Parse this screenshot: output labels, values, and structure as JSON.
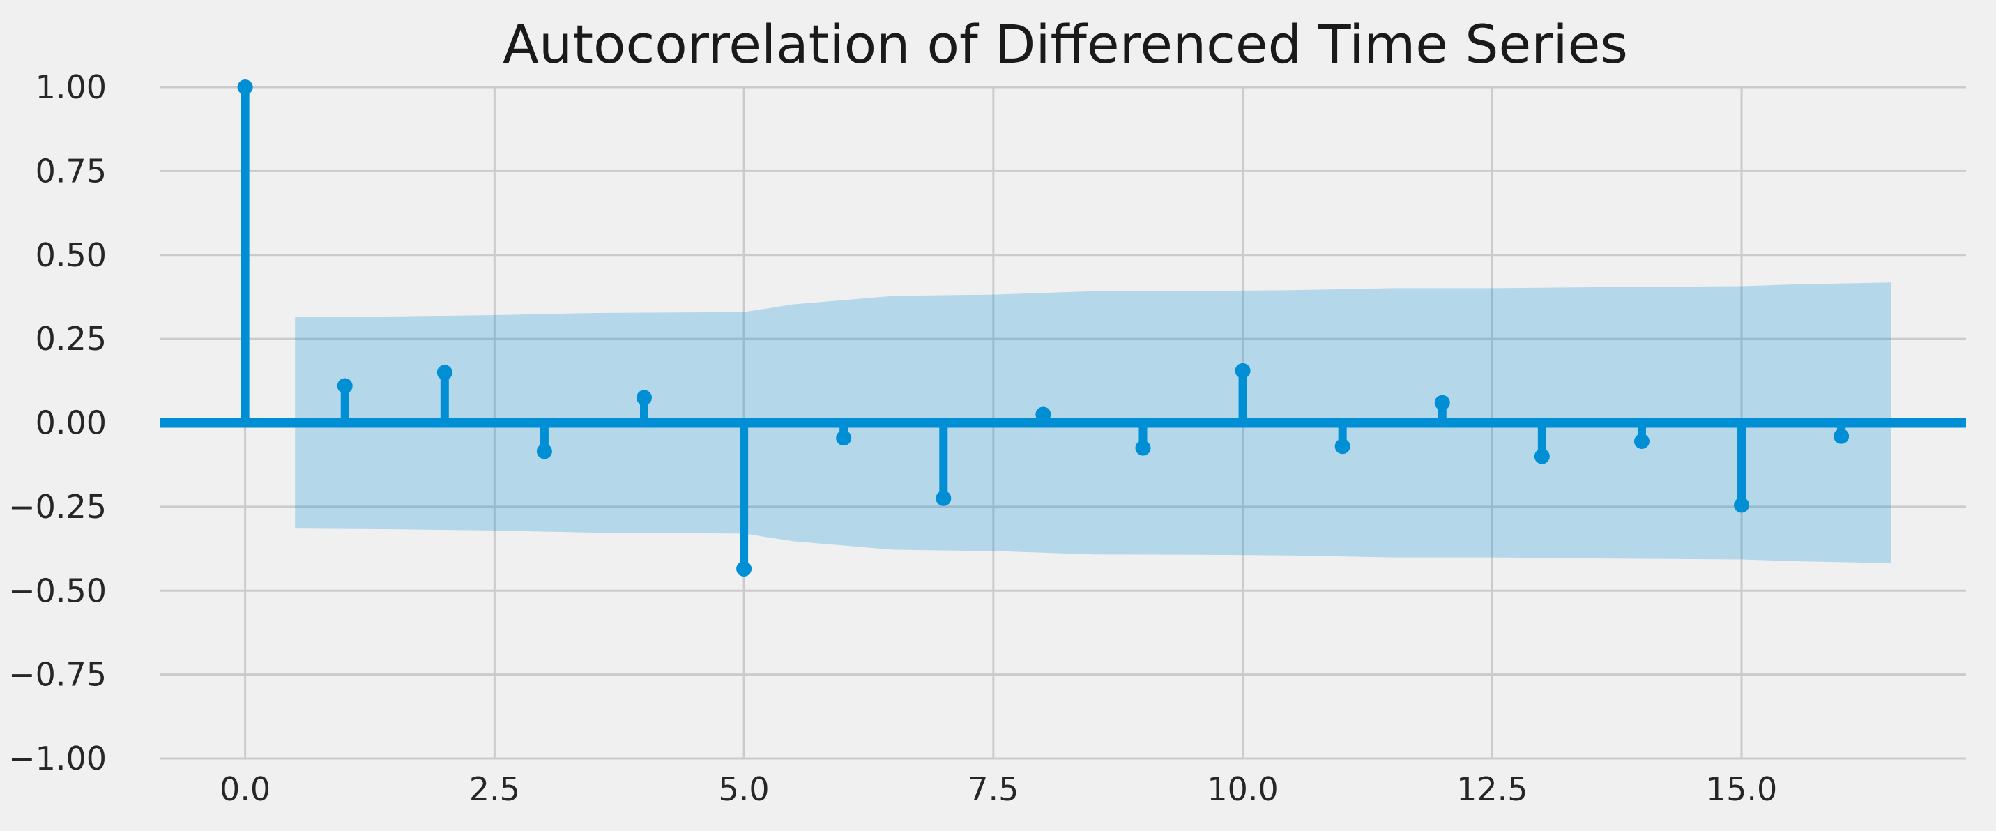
{
  "chart_data": {
    "type": "stem",
    "title": "Autocorrelation of Differenced Time Series",
    "xlabel": "",
    "ylabel": "",
    "xlim": [
      -0.85,
      17.25
    ],
    "ylim": [
      -1.0,
      1.0
    ],
    "x_ticks": [
      0.0,
      2.5,
      5.0,
      7.5,
      10.0,
      12.5,
      15.0
    ],
    "x_tick_labels": [
      "0.0",
      "2.5",
      "5.0",
      "7.5",
      "10.0",
      "12.5",
      "15.0"
    ],
    "y_ticks": [
      -1.0,
      -0.75,
      -0.5,
      -0.25,
      0.0,
      0.25,
      0.5,
      0.75,
      1.0
    ],
    "y_tick_labels": [
      "−1.00",
      "−0.75",
      "−0.50",
      "−0.25",
      "0.00",
      "0.25",
      "0.50",
      "0.75",
      "1.00"
    ],
    "grid": true,
    "colors": {
      "stem": "#008fd5",
      "band": "#008fd5",
      "band_opacity": 0.25,
      "background": "#f0f0f0",
      "grid": "#cbcbcb"
    },
    "lags": [
      0,
      1,
      2,
      3,
      4,
      5,
      6,
      7,
      8,
      9,
      10,
      11,
      12,
      13,
      14,
      15,
      16
    ],
    "values": [
      1.0,
      0.11,
      0.15,
      -0.085,
      0.075,
      -0.435,
      -0.045,
      -0.225,
      0.025,
      -0.075,
      0.155,
      -0.07,
      0.06,
      -0.1,
      -0.055,
      -0.245,
      -0.04
    ],
    "confidence_band": {
      "x": [
        0.5,
        1.5,
        2.5,
        3.5,
        4.5,
        5.0,
        5.5,
        6.5,
        7.5,
        8.5,
        9.5,
        10.5,
        11.5,
        12.5,
        13.5,
        14.5,
        15.0,
        15.5,
        16.5
      ],
      "upper": [
        0.315,
        0.317,
        0.321,
        0.327,
        0.329,
        0.33,
        0.353,
        0.378,
        0.382,
        0.392,
        0.393,
        0.395,
        0.401,
        0.401,
        0.404,
        0.406,
        0.407,
        0.412,
        0.418
      ],
      "lower": [
        -0.315,
        -0.317,
        -0.321,
        -0.327,
        -0.329,
        -0.33,
        -0.353,
        -0.378,
        -0.382,
        -0.392,
        -0.393,
        -0.395,
        -0.401,
        -0.401,
        -0.404,
        -0.406,
        -0.407,
        -0.412,
        -0.418
      ]
    }
  }
}
